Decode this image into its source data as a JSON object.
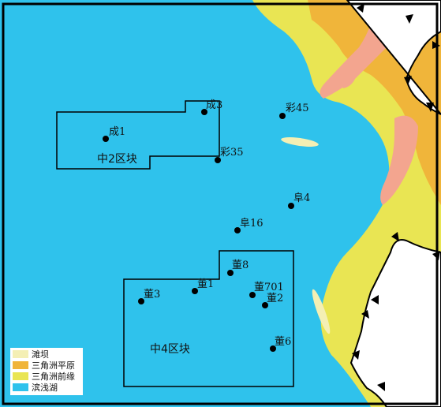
{
  "legend": [
    {
      "label": "滩坝",
      "color": "#f4efb4"
    },
    {
      "label": "三角洲平原",
      "color": "#f0b53a"
    },
    {
      "label": "三角洲前缘",
      "color": "#e9e553"
    },
    {
      "label": "滨浅湖",
      "color": "#2fc2ec"
    }
  ],
  "blocks": {
    "north": "中2区块",
    "south": "中4区块"
  },
  "wells": {
    "cheng1": "成1",
    "cheng3": "成3",
    "cai45": "彩45",
    "cai35": "彩35",
    "fu4": "阜4",
    "fu16": "阜16",
    "dong8": "董8",
    "dong1": "董1",
    "dong3": "董3",
    "dong701": "董701",
    "dong2": "董2",
    "dong6": "董6"
  },
  "colors": {
    "lake": "#2fc2ec",
    "front": "#e9e553",
    "plain": "#f0b53a",
    "bar": "#f4efb4",
    "pink": "#f3a58f",
    "land": "#ffffff"
  }
}
